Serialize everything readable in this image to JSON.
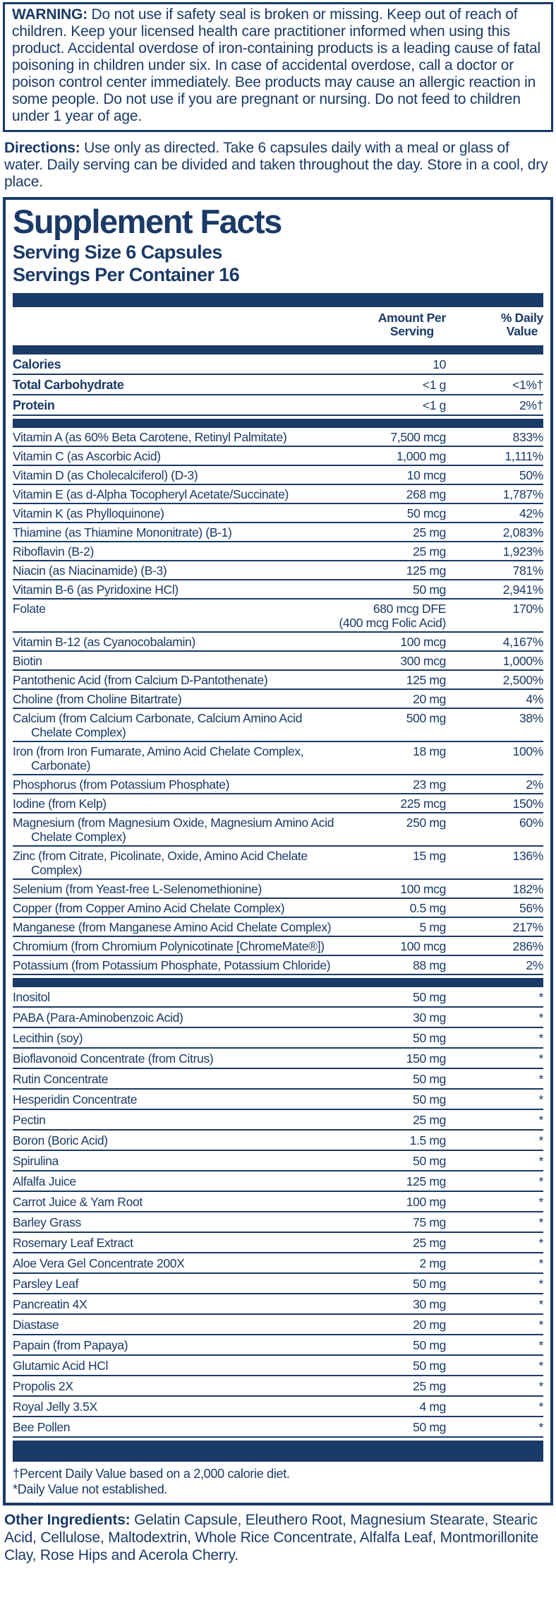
{
  "colors": {
    "navy": "#1a3a67",
    "background": "#ffffff"
  },
  "warning": {
    "label": "WARNING:",
    "text": "Do not use if safety seal is broken or missing. Keep out of reach of children. Keep your licensed health care practitioner informed when using this product. Accidental overdose of iron-containing products is a leading cause of fatal poisoning in children under six. In case of accidental overdose, call a doctor or poison control center immediately. Bee products may cause an allergic reaction in some people. Do not use if you are pregnant or nursing. Do not feed to children under 1 year of age."
  },
  "directions": {
    "label": "Directions:",
    "text": "Use only as directed. Take 6 capsules daily with a meal or glass of water. Daily serving can be divided and taken throughout the day. Store in a cool, dry place."
  },
  "supplement_facts": {
    "title": "Supplement Facts",
    "serving_size": "Serving Size 6 Capsules",
    "servings_per_container": "Servings Per Container 16",
    "columns": {
      "amount": "Amount Per\nServing",
      "dv": "% Daily\nValue"
    },
    "macro_rows": [
      {
        "name": "Calories",
        "amount": "10",
        "dv": ""
      },
      {
        "name": "Total Carbohydrate",
        "amount": "<1 g",
        "dv": "<1%†"
      },
      {
        "name": "Protein",
        "amount": "<1 g",
        "dv": "2%†"
      }
    ],
    "nutrient_rows": [
      {
        "name": "Vitamin A (as 60% Beta Carotene, Retinyl Palmitate)",
        "amount": "7,500 mcg",
        "dv": "833%"
      },
      {
        "name": "Vitamin C (as Ascorbic Acid)",
        "amount": "1,000 mg",
        "dv": "1,111%"
      },
      {
        "name": "Vitamin D (as Cholecalciferol) (D-3)",
        "amount": "10 mcg",
        "dv": "50%"
      },
      {
        "name": "Vitamin E (as d-Alpha Tocopheryl Acetate/Succinate)",
        "amount": "268 mg",
        "dv": "1,787%"
      },
      {
        "name": "Vitamin K (as Phylloquinone)",
        "amount": "50 mcg",
        "dv": "42%"
      },
      {
        "name": "Thiamine (as Thiamine Mononitrate) (B-1)",
        "amount": "25 mg",
        "dv": "2,083%"
      },
      {
        "name": "Riboflavin (B-2)",
        "amount": "25 mg",
        "dv": "1,923%"
      },
      {
        "name": "Niacin (as Niacinamide) (B-3)",
        "amount": "125 mg",
        "dv": "781%"
      },
      {
        "name": "Vitamin B-6 (as Pyridoxine HCl)",
        "amount": "50 mg",
        "dv": "2,941%"
      },
      {
        "name": "Folate",
        "amount": "680 mcg DFE",
        "amount2": "(400 mcg Folic Acid)",
        "dv": "170%"
      },
      {
        "name": "Vitamin B-12 (as Cyanocobalamin)",
        "amount": "100 mcg",
        "dv": "4,167%"
      },
      {
        "name": "Biotin",
        "amount": "300 mcg",
        "dv": "1,000%"
      },
      {
        "name": "Pantothenic Acid (from Calcium D-Pantothenate)",
        "amount": "125 mg",
        "dv": "2,500%"
      },
      {
        "name": "Choline (from Choline Bitartrate)",
        "amount": "20 mg",
        "dv": "4%"
      },
      {
        "name": "Calcium (from Calcium Carbonate, Calcium Amino Acid Chelate Complex)",
        "amount": "500 mg",
        "dv": "38%"
      },
      {
        "name": "Iron (from Iron Fumarate, Amino Acid Chelate Complex, Carbonate)",
        "amount": "18 mg",
        "dv": "100%"
      },
      {
        "name": "Phosphorus (from Potassium Phosphate)",
        "amount": "23 mg",
        "dv": "2%"
      },
      {
        "name": "Iodine (from Kelp)",
        "amount": "225 mcg",
        "dv": "150%"
      },
      {
        "name": "Magnesium (from Magnesium Oxide, Magnesium Amino Acid Chelate Complex)",
        "amount": "250 mg",
        "dv": "60%"
      },
      {
        "name": "Zinc (from Citrate, Picolinate, Oxide, Amino Acid Chelate Complex)",
        "amount": "15 mg",
        "dv": "136%"
      },
      {
        "name": "Selenium (from Yeast-free L-Selenomethionine)",
        "amount": "100 mcg",
        "dv": "182%"
      },
      {
        "name": "Copper (from Copper Amino Acid Chelate Complex)",
        "amount": "0.5 mg",
        "dv": "56%"
      },
      {
        "name": "Manganese (from Manganese Amino Acid Chelate Complex)",
        "amount": "5 mg",
        "dv": "217%"
      },
      {
        "name": "Chromium (from Chromium Polynicotinate [ChromeMate®])",
        "amount": "100 mcg",
        "dv": "286%"
      },
      {
        "name": "Potassium (from Potassium Phosphate, Potassium Chloride)",
        "amount": "88 mg",
        "dv": "2%"
      }
    ],
    "other_rows": [
      {
        "name": "Inositol",
        "amount": "50 mg",
        "dv": "*"
      },
      {
        "name": "PABA (Para-Aminobenzoic Acid)",
        "amount": "30 mg",
        "dv": "*"
      },
      {
        "name": "Lecithin (soy)",
        "amount": "50 mg",
        "dv": "*"
      },
      {
        "name": "Bioflavonoid Concentrate (from Citrus)",
        "amount": "150 mg",
        "dv": "*"
      },
      {
        "name": "Rutin Concentrate",
        "amount": "50 mg",
        "dv": "*"
      },
      {
        "name": "Hesperidin Concentrate",
        "amount": "50 mg",
        "dv": "*"
      },
      {
        "name": "Pectin",
        "amount": "25 mg",
        "dv": "*"
      },
      {
        "name": "Boron (Boric Acid)",
        "amount": "1.5 mg",
        "dv": "*"
      },
      {
        "name": "Spirulina",
        "amount": "50 mg",
        "dv": "*"
      },
      {
        "name": "Alfalfa Juice",
        "amount": "125 mg",
        "dv": "*"
      },
      {
        "name": "Carrot Juice & Yam Root",
        "amount": "100 mg",
        "dv": "*"
      },
      {
        "name": "Barley Grass",
        "amount": "75 mg",
        "dv": "*"
      },
      {
        "name": "Rosemary Leaf Extract",
        "amount": "25 mg",
        "dv": "*"
      },
      {
        "name": "Aloe Vera Gel Concentrate 200X",
        "amount": "2 mg",
        "dv": "*"
      },
      {
        "name": "Parsley Leaf",
        "amount": "50 mg",
        "dv": "*"
      },
      {
        "name": "Pancreatin 4X",
        "amount": "30 mg",
        "dv": "*"
      },
      {
        "name": "Diastase",
        "amount": "20 mg",
        "dv": "*"
      },
      {
        "name": "Papain (from Papaya)",
        "amount": "50 mg",
        "dv": "*"
      },
      {
        "name": "Glutamic Acid HCl",
        "amount": "50 mg",
        "dv": "*"
      },
      {
        "name": "Propolis 2X",
        "amount": "25 mg",
        "dv": "*"
      },
      {
        "name": "Royal Jelly 3.5X",
        "amount": "4 mg",
        "dv": "*"
      },
      {
        "name": "Bee Pollen",
        "amount": "50 mg",
        "dv": "*"
      }
    ],
    "footnotes": [
      "†Percent Daily Value based on a 2,000 calorie diet.",
      "*Daily Value not established."
    ]
  },
  "other_ingredients": {
    "label": "Other Ingredients:",
    "text": "Gelatin Capsule, Eleuthero Root, Magnesium Stearate, Stearic Acid, Cellulose, Maltodextrin, Whole Rice Concentrate, Alfalfa Leaf, Montmorillonite Clay, Rose Hips and Acerola Cherry."
  }
}
